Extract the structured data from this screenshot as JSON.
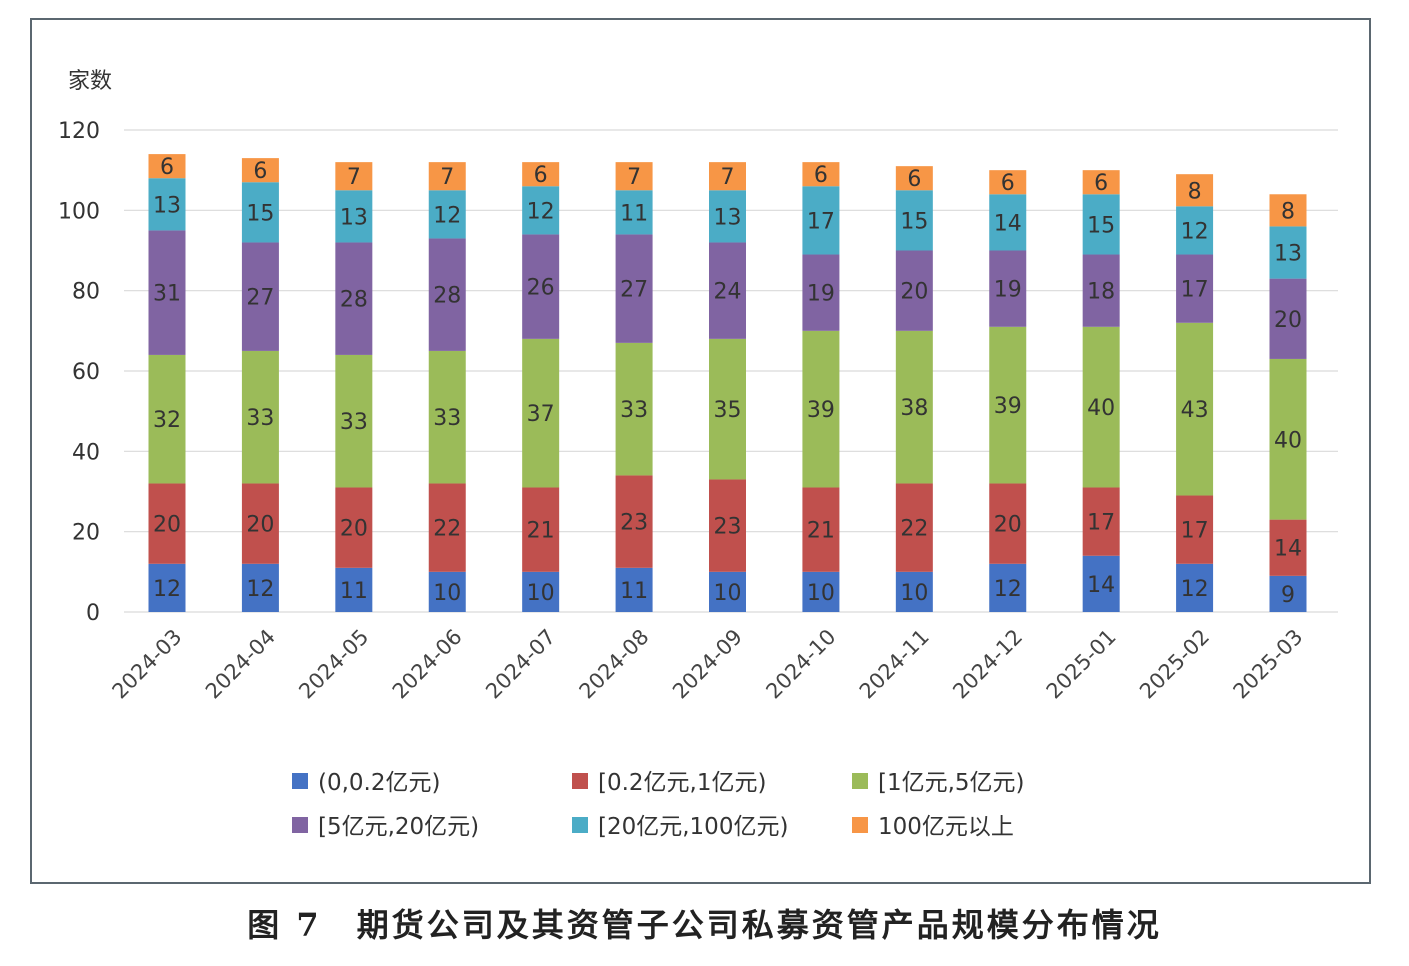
{
  "chart_data": {
    "type": "bar",
    "stacked": true,
    "ylabel": "家数",
    "ylim": [
      0,
      120
    ],
    "yticks": [
      0,
      20,
      40,
      60,
      80,
      100,
      120
    ],
    "grid": true,
    "legend_position": "bottom",
    "categories": [
      "2024-03",
      "2024-04",
      "2024-05",
      "2024-06",
      "2024-07",
      "2024-08",
      "2024-09",
      "2024-10",
      "2024-11",
      "2024-12",
      "2025-01",
      "2025-02",
      "2025-03"
    ],
    "series": [
      {
        "name": "(0,0.2亿元)",
        "color": "#4472c4",
        "values": [
          12,
          12,
          11,
          10,
          10,
          11,
          10,
          10,
          10,
          12,
          14,
          12,
          9
        ]
      },
      {
        "name": "[0.2亿元,1亿元)",
        "color": "#c0504d",
        "values": [
          20,
          20,
          20,
          22,
          21,
          23,
          23,
          21,
          22,
          20,
          17,
          17,
          14
        ]
      },
      {
        "name": "[1亿元,5亿元)",
        "color": "#9bbb59",
        "values": [
          32,
          33,
          33,
          33,
          37,
          33,
          35,
          39,
          38,
          39,
          40,
          43,
          40
        ]
      },
      {
        "name": "[5亿元,20亿元)",
        "color": "#8064a2",
        "values": [
          31,
          27,
          28,
          28,
          26,
          27,
          24,
          19,
          20,
          19,
          18,
          17,
          20
        ]
      },
      {
        "name": "[20亿元,100亿元)",
        "color": "#4bacc6",
        "values": [
          13,
          15,
          13,
          12,
          12,
          11,
          13,
          17,
          15,
          14,
          15,
          12,
          13
        ]
      },
      {
        "name": "100亿元以上",
        "color": "#f79646",
        "values": [
          6,
          6,
          7,
          7,
          6,
          7,
          7,
          6,
          6,
          6,
          6,
          8,
          8
        ]
      }
    ]
  },
  "caption": "图 7　期货公司及其资管子公司私募资管产品规模分布情况"
}
